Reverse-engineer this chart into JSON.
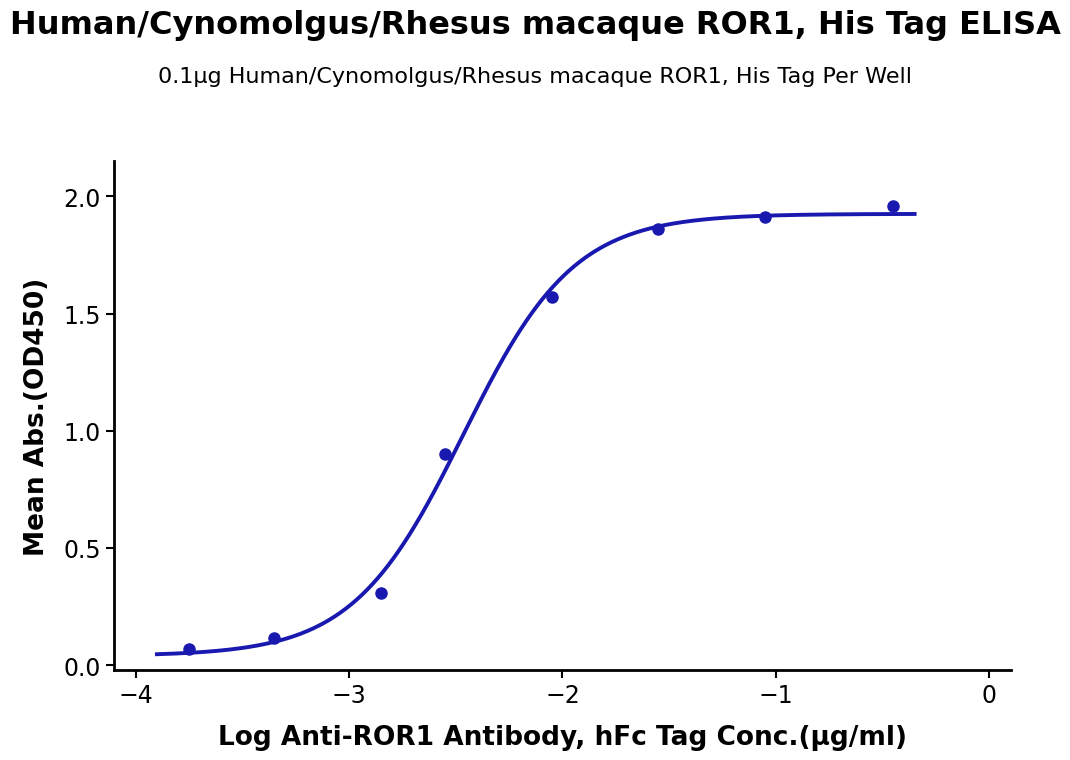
{
  "title": "Human/Cynomolgus/Rhesus macaque ROR1, His Tag ELISA",
  "subtitle": "0.1μg Human/Cynomolgus/Rhesus macaque ROR1, His Tag Per Well",
  "xlabel": "Log Anti-ROR1 Antibody, hFc Tag Conc.(μg/ml)",
  "ylabel": "Mean Abs.(OD450)",
  "line_color": "#1919b0",
  "dot_color": "#1919b0",
  "background_color": "#ffffff",
  "xlim": [
    -4.1,
    0.1
  ],
  "ylim": [
    -0.02,
    2.15
  ],
  "xticks": [
    -4,
    -3,
    -2,
    -1,
    0
  ],
  "yticks": [
    0.0,
    0.5,
    1.0,
    1.5,
    2.0
  ],
  "data_x": [
    -3.75,
    -3.35,
    -2.85,
    -2.55,
    -2.05,
    -1.55,
    -1.05,
    -0.45
  ],
  "data_y": [
    0.07,
    0.115,
    0.31,
    0.9,
    1.57,
    1.86,
    1.91,
    1.96
  ],
  "title_fontsize": 23,
  "subtitle_fontsize": 16,
  "axis_label_fontsize": 19,
  "tick_fontsize": 17,
  "line_width": 2.8,
  "dot_size": 8
}
